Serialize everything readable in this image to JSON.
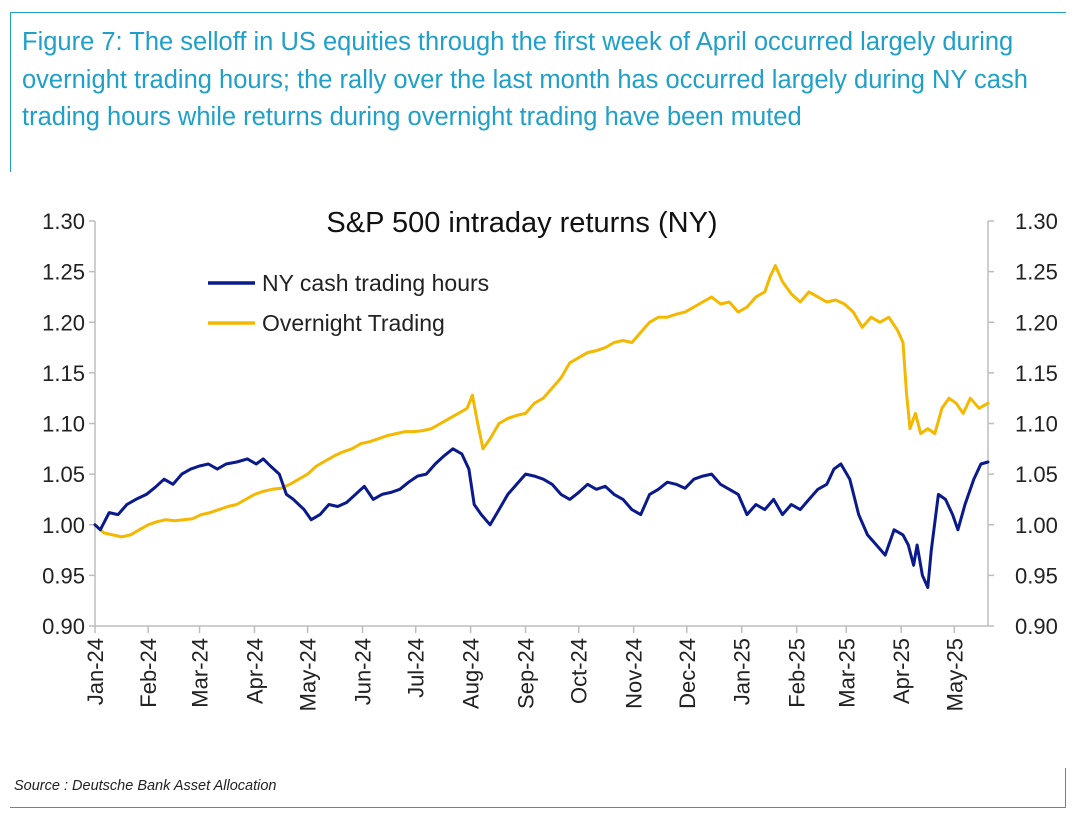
{
  "caption": "Figure 7: The selloff in US equities through the first week of April occurred largely during overnight trading hours; the rally over the last month has occurred largely during NY cash trading hours while returns during overnight trading have been muted",
  "source": "Source : Deutsche Bank Asset Allocation",
  "colors": {
    "accent": "#1fa0c8",
    "ny": "#0a1a8c",
    "overnight": "#f5b800"
  },
  "chart_data": {
    "type": "line",
    "title": "S&P 500 intraday returns (NY)",
    "xlabel": "",
    "ylabel": "",
    "ylim": [
      0.9,
      1.3
    ],
    "yticks": [
      "0.90",
      "0.95",
      "1.00",
      "1.05",
      "1.10",
      "1.15",
      "1.20",
      "1.25",
      "1.30"
    ],
    "xlim": [
      "2024-01-02",
      "2025-05-20"
    ],
    "xticks": [
      {
        "label": "Jan-24",
        "date": "2024-01-01"
      },
      {
        "label": "Feb-24",
        "date": "2024-02-01"
      },
      {
        "label": "Mar-24",
        "date": "2024-03-01"
      },
      {
        "label": "Apr-24",
        "date": "2024-04-01"
      },
      {
        "label": "May-24",
        "date": "2024-05-01"
      },
      {
        "label": "Jun-24",
        "date": "2024-06-01"
      },
      {
        "label": "Jul-24",
        "date": "2024-07-01"
      },
      {
        "label": "Aug-24",
        "date": "2024-08-01"
      },
      {
        "label": "Sep-24",
        "date": "2024-09-01"
      },
      {
        "label": "Oct-24",
        "date": "2024-10-01"
      },
      {
        "label": "Nov-24",
        "date": "2024-11-01"
      },
      {
        "label": "Dec-24",
        "date": "2024-12-01"
      },
      {
        "label": "Jan-25",
        "date": "2025-01-01"
      },
      {
        "label": "Feb-25",
        "date": "2025-02-01"
      },
      {
        "label": "Mar-25",
        "date": "2025-03-01"
      },
      {
        "label": "Apr-25",
        "date": "2025-04-01"
      },
      {
        "label": "May-25",
        "date": "2025-05-01"
      }
    ],
    "legend_position": "top-left",
    "grid": false,
    "series": [
      {
        "name": "NY cash trading hours",
        "color": "#0a1a8c",
        "points": [
          [
            "2024-01-02",
            1.0
          ],
          [
            "2024-01-05",
            0.995
          ],
          [
            "2024-01-10",
            1.012
          ],
          [
            "2024-01-15",
            1.01
          ],
          [
            "2024-01-20",
            1.02
          ],
          [
            "2024-01-25",
            1.025
          ],
          [
            "2024-01-31",
            1.03
          ],
          [
            "2024-02-05",
            1.037
          ],
          [
            "2024-02-10",
            1.045
          ],
          [
            "2024-02-15",
            1.04
          ],
          [
            "2024-02-20",
            1.05
          ],
          [
            "2024-02-25",
            1.055
          ],
          [
            "2024-03-01",
            1.058
          ],
          [
            "2024-03-06",
            1.06
          ],
          [
            "2024-03-11",
            1.055
          ],
          [
            "2024-03-16",
            1.06
          ],
          [
            "2024-03-22",
            1.062
          ],
          [
            "2024-03-28",
            1.065
          ],
          [
            "2024-04-02",
            1.06
          ],
          [
            "2024-04-06",
            1.065
          ],
          [
            "2024-04-10",
            1.058
          ],
          [
            "2024-04-15",
            1.05
          ],
          [
            "2024-04-19",
            1.03
          ],
          [
            "2024-04-23",
            1.025
          ],
          [
            "2024-04-29",
            1.015
          ],
          [
            "2024-05-03",
            1.005
          ],
          [
            "2024-05-08",
            1.01
          ],
          [
            "2024-05-13",
            1.02
          ],
          [
            "2024-05-18",
            1.018
          ],
          [
            "2024-05-23",
            1.022
          ],
          [
            "2024-05-28",
            1.03
          ],
          [
            "2024-06-02",
            1.038
          ],
          [
            "2024-06-07",
            1.025
          ],
          [
            "2024-06-12",
            1.03
          ],
          [
            "2024-06-17",
            1.032
          ],
          [
            "2024-06-22",
            1.035
          ],
          [
            "2024-06-27",
            1.042
          ],
          [
            "2024-07-02",
            1.048
          ],
          [
            "2024-07-07",
            1.05
          ],
          [
            "2024-07-12",
            1.06
          ],
          [
            "2024-07-17",
            1.068
          ],
          [
            "2024-07-22",
            1.075
          ],
          [
            "2024-07-27",
            1.07
          ],
          [
            "2024-07-31",
            1.055
          ],
          [
            "2024-08-03",
            1.02
          ],
          [
            "2024-08-07",
            1.01
          ],
          [
            "2024-08-12",
            1.0
          ],
          [
            "2024-08-17",
            1.015
          ],
          [
            "2024-08-22",
            1.03
          ],
          [
            "2024-08-27",
            1.04
          ],
          [
            "2024-09-01",
            1.05
          ],
          [
            "2024-09-06",
            1.048
          ],
          [
            "2024-09-11",
            1.045
          ],
          [
            "2024-09-16",
            1.04
          ],
          [
            "2024-09-21",
            1.03
          ],
          [
            "2024-09-26",
            1.025
          ],
          [
            "2024-10-01",
            1.032
          ],
          [
            "2024-10-06",
            1.04
          ],
          [
            "2024-10-11",
            1.035
          ],
          [
            "2024-10-16",
            1.038
          ],
          [
            "2024-10-21",
            1.03
          ],
          [
            "2024-10-26",
            1.025
          ],
          [
            "2024-10-31",
            1.015
          ],
          [
            "2024-11-05",
            1.01
          ],
          [
            "2024-11-10",
            1.03
          ],
          [
            "2024-11-15",
            1.035
          ],
          [
            "2024-11-20",
            1.042
          ],
          [
            "2024-11-25",
            1.04
          ],
          [
            "2024-11-30",
            1.036
          ],
          [
            "2024-12-05",
            1.045
          ],
          [
            "2024-12-10",
            1.048
          ],
          [
            "2024-12-15",
            1.05
          ],
          [
            "2024-12-20",
            1.04
          ],
          [
            "2024-12-25",
            1.035
          ],
          [
            "2024-12-30",
            1.03
          ],
          [
            "2025-01-04",
            1.01
          ],
          [
            "2025-01-09",
            1.02
          ],
          [
            "2025-01-14",
            1.015
          ],
          [
            "2025-01-19",
            1.025
          ],
          [
            "2025-01-24",
            1.01
          ],
          [
            "2025-01-29",
            1.02
          ],
          [
            "2025-02-03",
            1.015
          ],
          [
            "2025-02-08",
            1.025
          ],
          [
            "2025-02-13",
            1.035
          ],
          [
            "2025-02-18",
            1.04
          ],
          [
            "2025-02-22",
            1.055
          ],
          [
            "2025-02-26",
            1.06
          ],
          [
            "2025-03-03",
            1.045
          ],
          [
            "2025-03-08",
            1.01
          ],
          [
            "2025-03-13",
            0.99
          ],
          [
            "2025-03-18",
            0.98
          ],
          [
            "2025-03-23",
            0.97
          ],
          [
            "2025-03-28",
            0.995
          ],
          [
            "2025-04-02",
            0.99
          ],
          [
            "2025-04-05",
            0.98
          ],
          [
            "2025-04-08",
            0.96
          ],
          [
            "2025-04-10",
            0.98
          ],
          [
            "2025-04-13",
            0.95
          ],
          [
            "2025-04-16",
            0.938
          ],
          [
            "2025-04-18",
            0.975
          ],
          [
            "2025-04-22",
            1.03
          ],
          [
            "2025-04-26",
            1.025
          ],
          [
            "2025-04-30",
            1.01
          ],
          [
            "2025-05-03",
            0.995
          ],
          [
            "2025-05-07",
            1.02
          ],
          [
            "2025-05-12",
            1.045
          ],
          [
            "2025-05-16",
            1.06
          ],
          [
            "2025-05-20",
            1.062
          ]
        ]
      },
      {
        "name": "Overnight Trading",
        "color": "#f5b800",
        "points": [
          [
            "2024-01-02",
            1.0
          ],
          [
            "2024-01-07",
            0.992
          ],
          [
            "2024-01-12",
            0.99
          ],
          [
            "2024-01-17",
            0.988
          ],
          [
            "2024-01-22",
            0.99
          ],
          [
            "2024-01-27",
            0.995
          ],
          [
            "2024-02-01",
            1.0
          ],
          [
            "2024-02-06",
            1.003
          ],
          [
            "2024-02-11",
            1.005
          ],
          [
            "2024-02-16",
            1.004
          ],
          [
            "2024-02-21",
            1.005
          ],
          [
            "2024-02-26",
            1.006
          ],
          [
            "2024-03-02",
            1.01
          ],
          [
            "2024-03-07",
            1.012
          ],
          [
            "2024-03-12",
            1.015
          ],
          [
            "2024-03-17",
            1.018
          ],
          [
            "2024-03-22",
            1.02
          ],
          [
            "2024-03-27",
            1.025
          ],
          [
            "2024-04-01",
            1.03
          ],
          [
            "2024-04-06",
            1.033
          ],
          [
            "2024-04-11",
            1.035
          ],
          [
            "2024-04-16",
            1.036
          ],
          [
            "2024-04-21",
            1.04
          ],
          [
            "2024-04-26",
            1.045
          ],
          [
            "2024-05-01",
            1.05
          ],
          [
            "2024-05-06",
            1.058
          ],
          [
            "2024-05-11",
            1.063
          ],
          [
            "2024-05-16",
            1.068
          ],
          [
            "2024-05-21",
            1.072
          ],
          [
            "2024-05-26",
            1.075
          ],
          [
            "2024-05-31",
            1.08
          ],
          [
            "2024-06-05",
            1.082
          ],
          [
            "2024-06-10",
            1.085
          ],
          [
            "2024-06-15",
            1.088
          ],
          [
            "2024-06-20",
            1.09
          ],
          [
            "2024-06-25",
            1.092
          ],
          [
            "2024-06-30",
            1.092
          ],
          [
            "2024-07-05",
            1.093
          ],
          [
            "2024-07-10",
            1.095
          ],
          [
            "2024-07-15",
            1.1
          ],
          [
            "2024-07-20",
            1.105
          ],
          [
            "2024-07-25",
            1.11
          ],
          [
            "2024-07-30",
            1.115
          ],
          [
            "2024-08-02",
            1.128
          ],
          [
            "2024-08-05",
            1.1
          ],
          [
            "2024-08-08",
            1.075
          ],
          [
            "2024-08-12",
            1.085
          ],
          [
            "2024-08-17",
            1.1
          ],
          [
            "2024-08-22",
            1.105
          ],
          [
            "2024-08-27",
            1.108
          ],
          [
            "2024-09-01",
            1.11
          ],
          [
            "2024-09-06",
            1.12
          ],
          [
            "2024-09-11",
            1.125
          ],
          [
            "2024-09-16",
            1.135
          ],
          [
            "2024-09-21",
            1.145
          ],
          [
            "2024-09-26",
            1.16
          ],
          [
            "2024-10-01",
            1.165
          ],
          [
            "2024-10-06",
            1.17
          ],
          [
            "2024-10-11",
            1.172
          ],
          [
            "2024-10-16",
            1.175
          ],
          [
            "2024-10-21",
            1.18
          ],
          [
            "2024-10-26",
            1.182
          ],
          [
            "2024-10-31",
            1.18
          ],
          [
            "2024-11-05",
            1.19
          ],
          [
            "2024-11-10",
            1.2
          ],
          [
            "2024-11-15",
            1.205
          ],
          [
            "2024-11-20",
            1.205
          ],
          [
            "2024-11-25",
            1.208
          ],
          [
            "2024-11-30",
            1.21
          ],
          [
            "2024-12-05",
            1.215
          ],
          [
            "2024-12-10",
            1.22
          ],
          [
            "2024-12-15",
            1.225
          ],
          [
            "2024-12-20",
            1.218
          ],
          [
            "2024-12-25",
            1.22
          ],
          [
            "2024-12-30",
            1.21
          ],
          [
            "2025-01-04",
            1.215
          ],
          [
            "2025-01-09",
            1.225
          ],
          [
            "2025-01-14",
            1.23
          ],
          [
            "2025-01-17",
            1.245
          ],
          [
            "2025-01-20",
            1.256
          ],
          [
            "2025-01-24",
            1.24
          ],
          [
            "2025-01-29",
            1.228
          ],
          [
            "2025-02-03",
            1.22
          ],
          [
            "2025-02-08",
            1.23
          ],
          [
            "2025-02-13",
            1.225
          ],
          [
            "2025-02-18",
            1.22
          ],
          [
            "2025-02-23",
            1.222
          ],
          [
            "2025-02-28",
            1.218
          ],
          [
            "2025-03-05",
            1.21
          ],
          [
            "2025-03-10",
            1.195
          ],
          [
            "2025-03-15",
            1.205
          ],
          [
            "2025-03-20",
            1.2
          ],
          [
            "2025-03-25",
            1.205
          ],
          [
            "2025-03-30",
            1.192
          ],
          [
            "2025-04-02",
            1.18
          ],
          [
            "2025-04-04",
            1.13
          ],
          [
            "2025-04-06",
            1.095
          ],
          [
            "2025-04-09",
            1.11
          ],
          [
            "2025-04-12",
            1.09
          ],
          [
            "2025-04-16",
            1.095
          ],
          [
            "2025-04-20",
            1.09
          ],
          [
            "2025-04-24",
            1.115
          ],
          [
            "2025-04-28",
            1.125
          ],
          [
            "2025-05-02",
            1.12
          ],
          [
            "2025-05-06",
            1.11
          ],
          [
            "2025-05-10",
            1.125
          ],
          [
            "2025-05-15",
            1.115
          ],
          [
            "2025-05-20",
            1.12
          ]
        ]
      }
    ]
  }
}
